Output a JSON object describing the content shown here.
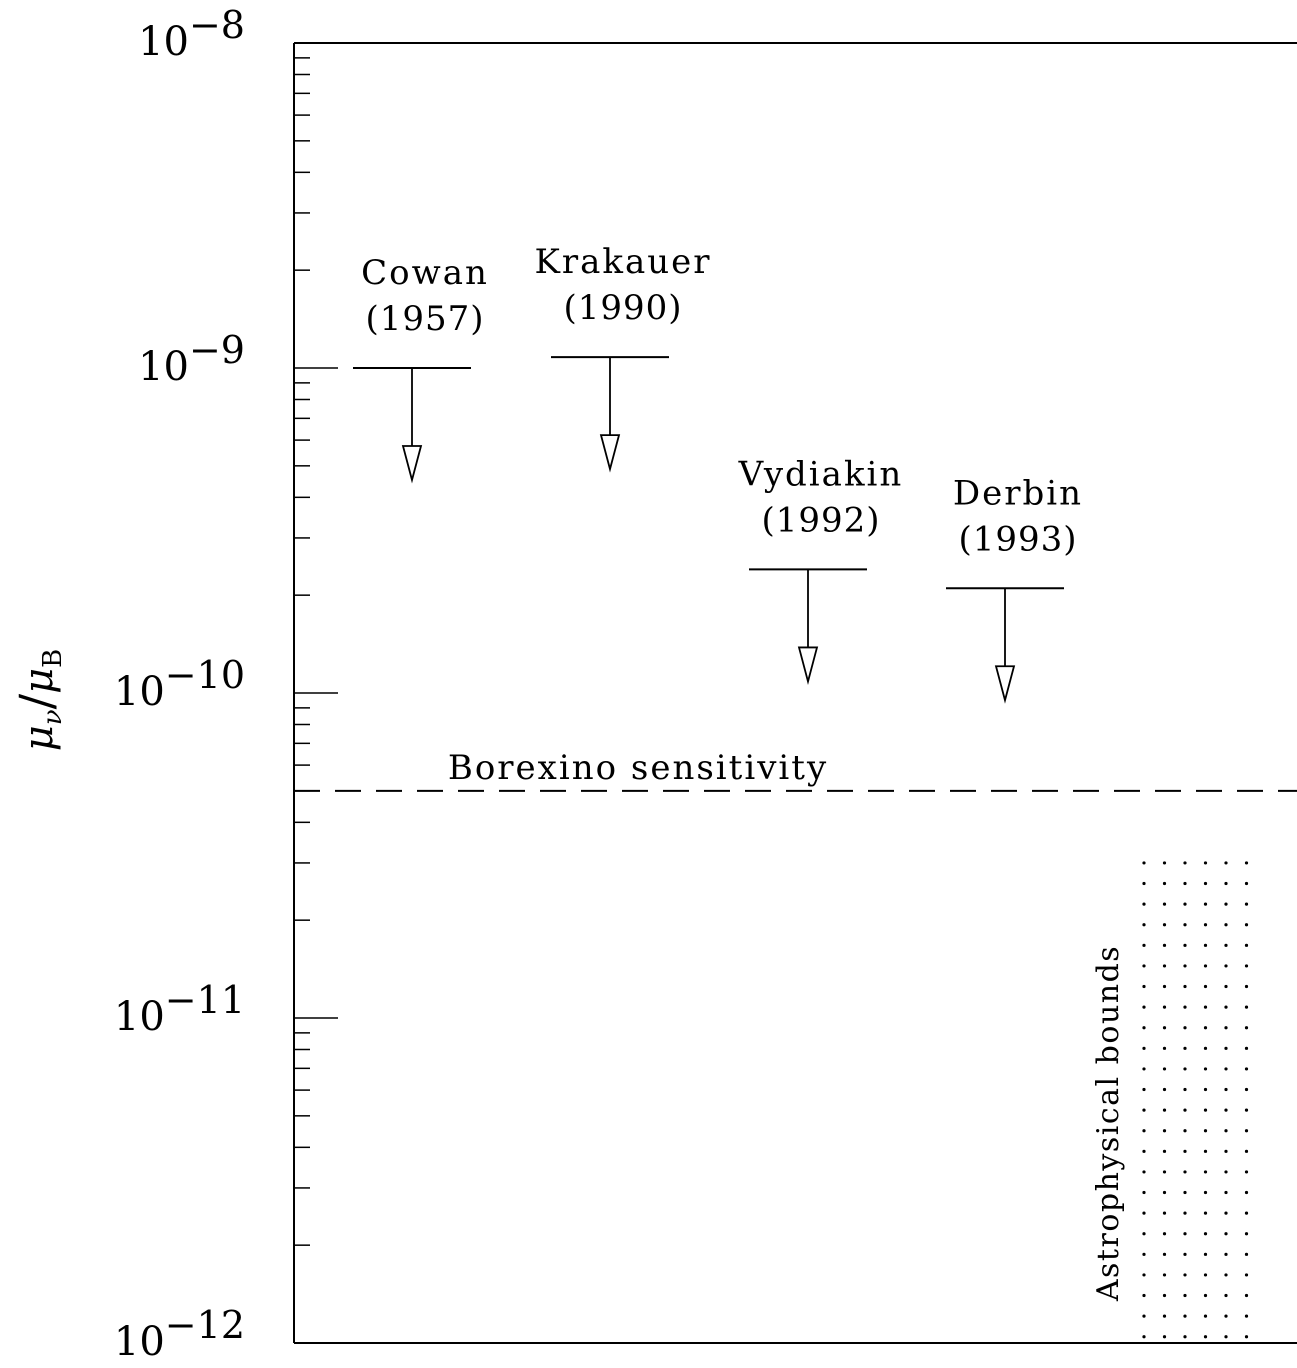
{
  "chart_data": {
    "type": "scatter",
    "title": "",
    "xlabel": "",
    "ylabel": {
      "base": "μ",
      "sub_num": "ν",
      "slash": "/",
      "base2": "μ",
      "sub_den": "B"
    },
    "y_scale": "log",
    "ylim": [
      1e-12,
      1e-08
    ],
    "y_ticks": [
      {
        "value": 1e-08,
        "base": "10",
        "exp": "−8"
      },
      {
        "value": 1e-09,
        "base": "10",
        "exp": "−9"
      },
      {
        "value": 1e-10,
        "base": "10",
        "exp": "−10"
      },
      {
        "value": 1e-11,
        "base": "10",
        "exp": "−11"
      },
      {
        "value": 1e-12,
        "base": "10",
        "exp": "−12"
      }
    ],
    "x_axis_shown": false,
    "grid": false,
    "upper_limits": [
      {
        "name": "Cowan",
        "year": "(1957)",
        "value": 1e-09
      },
      {
        "name": "Krakauer",
        "year": "(1990)",
        "value": 1.08e-09
      },
      {
        "name": "Vydiakin",
        "year": "(1992)",
        "value": 2.4e-10
      },
      {
        "name": "Derbin",
        "year": "(1993)",
        "value": 2.1e-10
      }
    ],
    "reference_lines": [
      {
        "label": "Borexino sensitivity",
        "value": 5e-11,
        "style": "dashed"
      }
    ],
    "shaded_regions": [
      {
        "label": "Astrophysical bounds",
        "y_from": 1e-12,
        "y_to": 3e-11,
        "style": "dotted"
      }
    ]
  }
}
